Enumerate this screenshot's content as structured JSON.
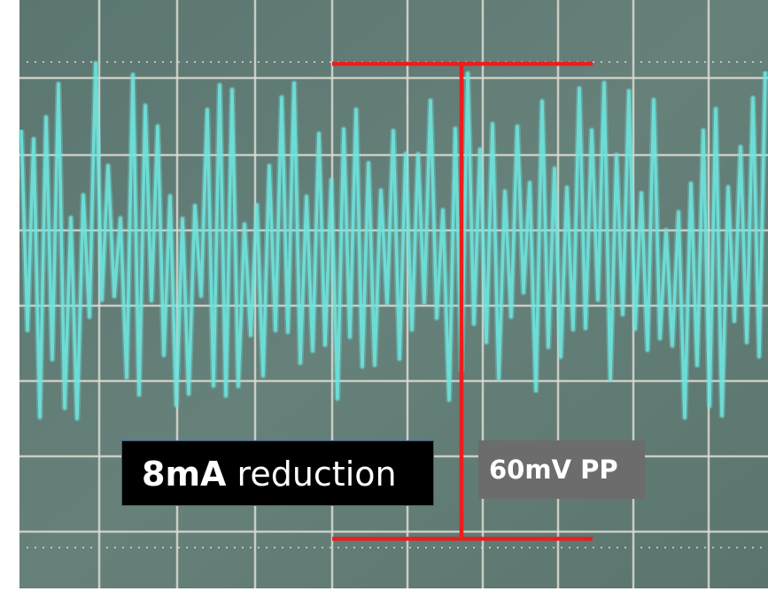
{
  "annotations": {
    "current": {
      "bold": "8mA",
      "text": "reduction"
    },
    "measurement": "60mV PP"
  }
}
